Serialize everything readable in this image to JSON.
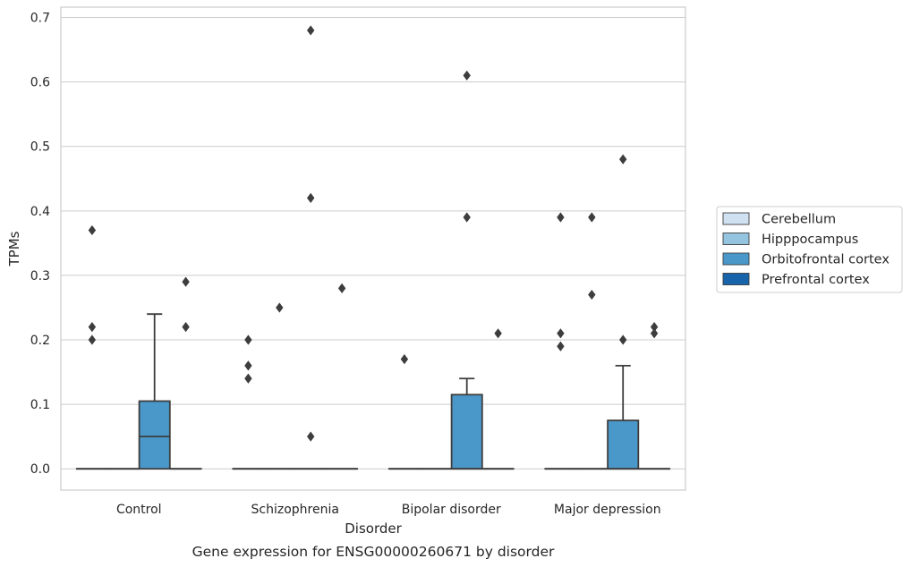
{
  "chart_data": {
    "type": "box",
    "caption": "Gene expression for ENSG00000260671 by disorder",
    "xlabel": "Disorder",
    "ylabel": "TPMs",
    "ylim": [
      -0.033,
      0.716
    ],
    "yticks": [
      "0.0",
      "0.1",
      "0.2",
      "0.3",
      "0.4",
      "0.5",
      "0.6",
      "0.7"
    ],
    "grid": "horizontal",
    "legend_position": "right",
    "categories": [
      "Control",
      "Schizophrenia",
      "Bipolar disorder",
      "Major depression"
    ],
    "series": [
      {
        "name": "Cerebellum",
        "color": "#d0e1f2",
        "boxes": [
          {
            "min": 0,
            "q1": 0,
            "median": 0,
            "q3": 0,
            "max": 0,
            "outliers": [
              0.37,
              0.22,
              0.2
            ]
          },
          {
            "min": 0,
            "q1": 0,
            "median": 0,
            "q3": 0,
            "max": 0,
            "outliers": [
              0.2,
              0.16,
              0.14
            ]
          },
          {
            "min": 0,
            "q1": 0,
            "median": 0,
            "q3": 0,
            "max": 0,
            "outliers": [
              0.17
            ]
          },
          {
            "min": 0,
            "q1": 0,
            "median": 0,
            "q3": 0,
            "max": 0,
            "outliers": [
              0.39,
              0.21,
              0.19
            ]
          }
        ]
      },
      {
        "name": "Hipppocampus",
        "color": "#94c4df",
        "boxes": [
          {
            "min": 0,
            "q1": 0,
            "median": 0,
            "q3": 0,
            "max": 0,
            "outliers": []
          },
          {
            "min": 0,
            "q1": 0,
            "median": 0,
            "q3": 0,
            "max": 0,
            "outliers": [
              0.25
            ]
          },
          {
            "min": 0,
            "q1": 0,
            "median": 0,
            "q3": 0,
            "max": 0,
            "outliers": []
          },
          {
            "min": 0,
            "q1": 0,
            "median": 0,
            "q3": 0,
            "max": 0,
            "outliers": [
              0.39,
              0.27
            ]
          }
        ]
      },
      {
        "name": "Orbitofrontal cortex",
        "color": "#4a98c9",
        "boxes": [
          {
            "min": 0,
            "q1": 0,
            "median": 0.05,
            "q3": 0.105,
            "max": 0.24,
            "outliers": []
          },
          {
            "min": 0,
            "q1": 0,
            "median": 0,
            "q3": 0,
            "max": 0,
            "outliers": [
              0.68,
              0.42,
              0.05
            ]
          },
          {
            "min": 0,
            "q1": 0,
            "median": 0,
            "q3": 0.115,
            "max": 0.14,
            "outliers": [
              0.61,
              0.39
            ]
          },
          {
            "min": 0,
            "q1": 0,
            "median": 0,
            "q3": 0.075,
            "max": 0.16,
            "outliers": [
              0.48,
              0.2
            ]
          }
        ]
      },
      {
        "name": "Prefrontal cortex",
        "color": "#1764ab",
        "boxes": [
          {
            "min": 0,
            "q1": 0,
            "median": 0,
            "q3": 0,
            "max": 0,
            "outliers": [
              0.29,
              0.22
            ]
          },
          {
            "min": 0,
            "q1": 0,
            "median": 0,
            "q3": 0,
            "max": 0,
            "outliers": [
              0.28
            ]
          },
          {
            "min": 0,
            "q1": 0,
            "median": 0,
            "q3": 0,
            "max": 0,
            "outliers": [
              0.21
            ]
          },
          {
            "min": 0,
            "q1": 0,
            "median": 0,
            "q3": 0,
            "max": 0,
            "outliers": [
              0.22,
              0.21
            ]
          }
        ]
      }
    ]
  }
}
